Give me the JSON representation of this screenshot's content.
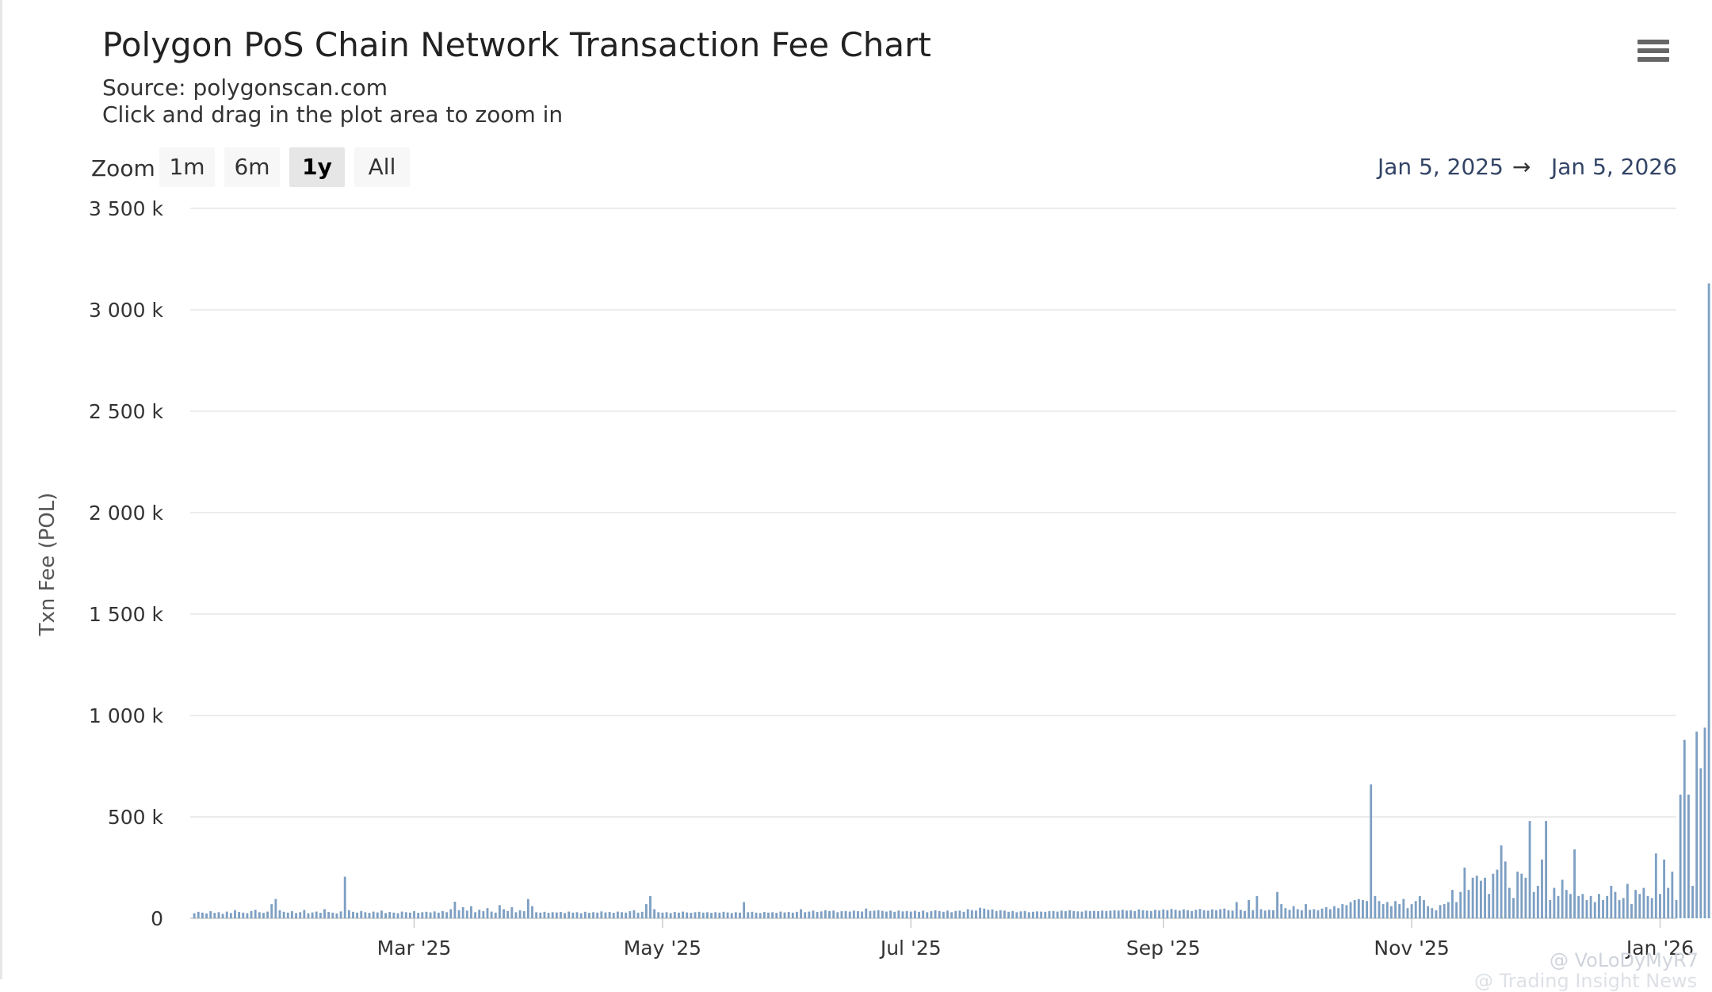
{
  "header": {
    "title": "Polygon PoS Chain Network Transaction Fee Chart",
    "source": "Source: polygonscan.com",
    "hint": "Click and drag in the plot area to zoom in"
  },
  "menu_icon": "hamburger-menu-icon",
  "zoom": {
    "label": "Zoom",
    "buttons": [
      "1m",
      "6m",
      "1y",
      "All"
    ],
    "active": "1y"
  },
  "range": {
    "from": "Jan 5, 2025",
    "arrow": "→",
    "to": "Jan 5, 2026"
  },
  "watermark": {
    "line1": "@ VoLoDyMyR7",
    "line2": "@ Trading Insight News"
  },
  "colors": {
    "bar": "#7d9fc3",
    "grid": "#e6e6e6",
    "axis_text": "#333333",
    "range_text": "#334466"
  },
  "chart_data": {
    "type": "bar",
    "title": "Polygon PoS Chain Network Transaction Fee Chart",
    "subtitle": "Source: polygonscan.com",
    "ylabel": "Txn Fee (POL)",
    "xlabel": "",
    "ylim": [
      0,
      3500000
    ],
    "yticks": [
      0,
      500000,
      1000000,
      1500000,
      2000000,
      2500000,
      3000000,
      3500000
    ],
    "ytick_labels": [
      "0",
      "500 k",
      "1 000 k",
      "1 500 k",
      "2 000 k",
      "2 500 k",
      "3 000 k",
      "3 500 k"
    ],
    "x_range": [
      "2025-01-05",
      "2026-01-05"
    ],
    "xticks": [
      {
        "date": "2025-03-01",
        "label": "Mar '25"
      },
      {
        "date": "2025-05-01",
        "label": "May '25"
      },
      {
        "date": "2025-07-01",
        "label": "Jul '25"
      },
      {
        "date": "2025-09-01",
        "label": "Sep '25"
      },
      {
        "date": "2025-11-01",
        "label": "Nov '25"
      },
      {
        "date": "2026-01-01",
        "label": "Jan '26"
      }
    ],
    "grid": true,
    "legend": "none",
    "series": [
      {
        "start_date": "2025-01-06",
        "interval": "1 day",
        "values": [
          25000,
          32000,
          28000,
          24000,
          35000,
          27000,
          30000,
          22000,
          33000,
          26000,
          40000,
          31000,
          28000,
          25000,
          36000,
          42000,
          30000,
          27000,
          33000,
          70000,
          95000,
          40000,
          32000,
          28000,
          35000,
          26000,
          30000,
          41000,
          25000,
          29000,
          33000,
          27000,
          45000,
          31000,
          28000,
          24000,
          34000,
          205000,
          40000,
          32000,
          28000,
          36000,
          30000,
          27000,
          33000,
          29000,
          38000,
          26000,
          31000,
          28000,
          25000,
          33000,
          30000,
          28000,
          35000,
          27000,
          30000,
          32000,
          29000,
          34000,
          28000,
          36000,
          30000,
          45000,
          82000,
          40000,
          55000,
          38000,
          60000,
          30000,
          42000,
          35000,
          50000,
          33000,
          28000,
          65000,
          45000,
          36000,
          55000,
          30000,
          40000,
          35000,
          95000,
          60000,
          30000,
          28000,
          32000,
          27000,
          30000,
          29000,
          31000,
          26000,
          33000,
          28000,
          30000,
          25000,
          32000,
          27000,
          30000,
          28000,
          34000,
          29000,
          31000,
          27000,
          33000,
          30000,
          28000,
          35000,
          40000,
          28000,
          32000,
          70000,
          110000,
          45000,
          30000,
          28000,
          30000,
          26000,
          31000,
          28000,
          33000,
          29000,
          27000,
          30000,
          32000,
          28000,
          30000,
          27000,
          30000,
          28000,
          32000,
          29000,
          26000,
          30000,
          28000,
          80000,
          30000,
          32000,
          28000,
          26000,
          31000,
          28000,
          30000,
          27000,
          33000,
          29000,
          31000,
          28000,
          32000,
          45000,
          30000,
          33000,
          38000,
          31000,
          34000,
          40000,
          36000,
          38000,
          30000,
          35000,
          36000,
          33000,
          38000,
          35000,
          33000,
          48000,
          36000,
          38000,
          40000,
          37000,
          33000,
          38000,
          32000,
          38000,
          34000,
          36000,
          33000,
          37000,
          32000,
          38000,
          30000,
          35000,
          40000,
          36000,
          32000,
          38000,
          30000,
          36000,
          38000,
          32000,
          45000,
          40000,
          38000,
          52000,
          48000,
          42000,
          44000,
          36000,
          40000,
          38000,
          32000,
          36000,
          30000,
          34000,
          36000,
          30000,
          32000,
          34000,
          33000,
          32000,
          35000,
          36000,
          33000,
          38000,
          35000,
          40000,
          36000,
          34000,
          33000,
          38000,
          36000,
          37000,
          35000,
          38000,
          36000,
          38000,
          40000,
          38000,
          42000,
          38000,
          40000,
          36000,
          44000,
          40000,
          38000,
          36000,
          42000,
          38000,
          44000,
          40000,
          46000,
          42000,
          38000,
          44000,
          40000,
          36000,
          42000,
          46000,
          40000,
          38000,
          44000,
          40000,
          45000,
          48000,
          40000,
          38000,
          80000,
          42000,
          36000,
          90000,
          40000,
          110000,
          45000,
          38000,
          42000,
          40000,
          130000,
          70000,
          50000,
          42000,
          60000,
          45000,
          40000,
          70000,
          42000,
          45000,
          40000,
          48000,
          55000,
          45000,
          60000,
          50000,
          70000,
          65000,
          80000,
          90000,
          95000,
          90000,
          85000,
          660000,
          110000,
          85000,
          70000,
          80000,
          60000,
          85000,
          70000,
          95000,
          50000,
          70000,
          85000,
          110000,
          90000,
          60000,
          50000,
          40000,
          65000,
          70000,
          80000,
          140000,
          80000,
          130000,
          250000,
          140000,
          200000,
          210000,
          185000,
          200000,
          120000,
          220000,
          240000,
          360000,
          280000,
          150000,
          100000,
          230000,
          220000,
          200000,
          480000,
          130000,
          160000,
          290000,
          480000,
          90000,
          150000,
          110000,
          190000,
          140000,
          120000,
          340000,
          110000,
          120000,
          90000,
          110000,
          80000,
          120000,
          90000,
          110000,
          160000,
          130000,
          90000,
          100000,
          170000,
          70000,
          140000,
          120000,
          150000,
          110000,
          100000,
          320000,
          120000,
          290000,
          150000,
          230000,
          90000,
          610000,
          880000,
          610000,
          160000,
          920000,
          740000,
          940000,
          3130000
        ]
      }
    ]
  }
}
